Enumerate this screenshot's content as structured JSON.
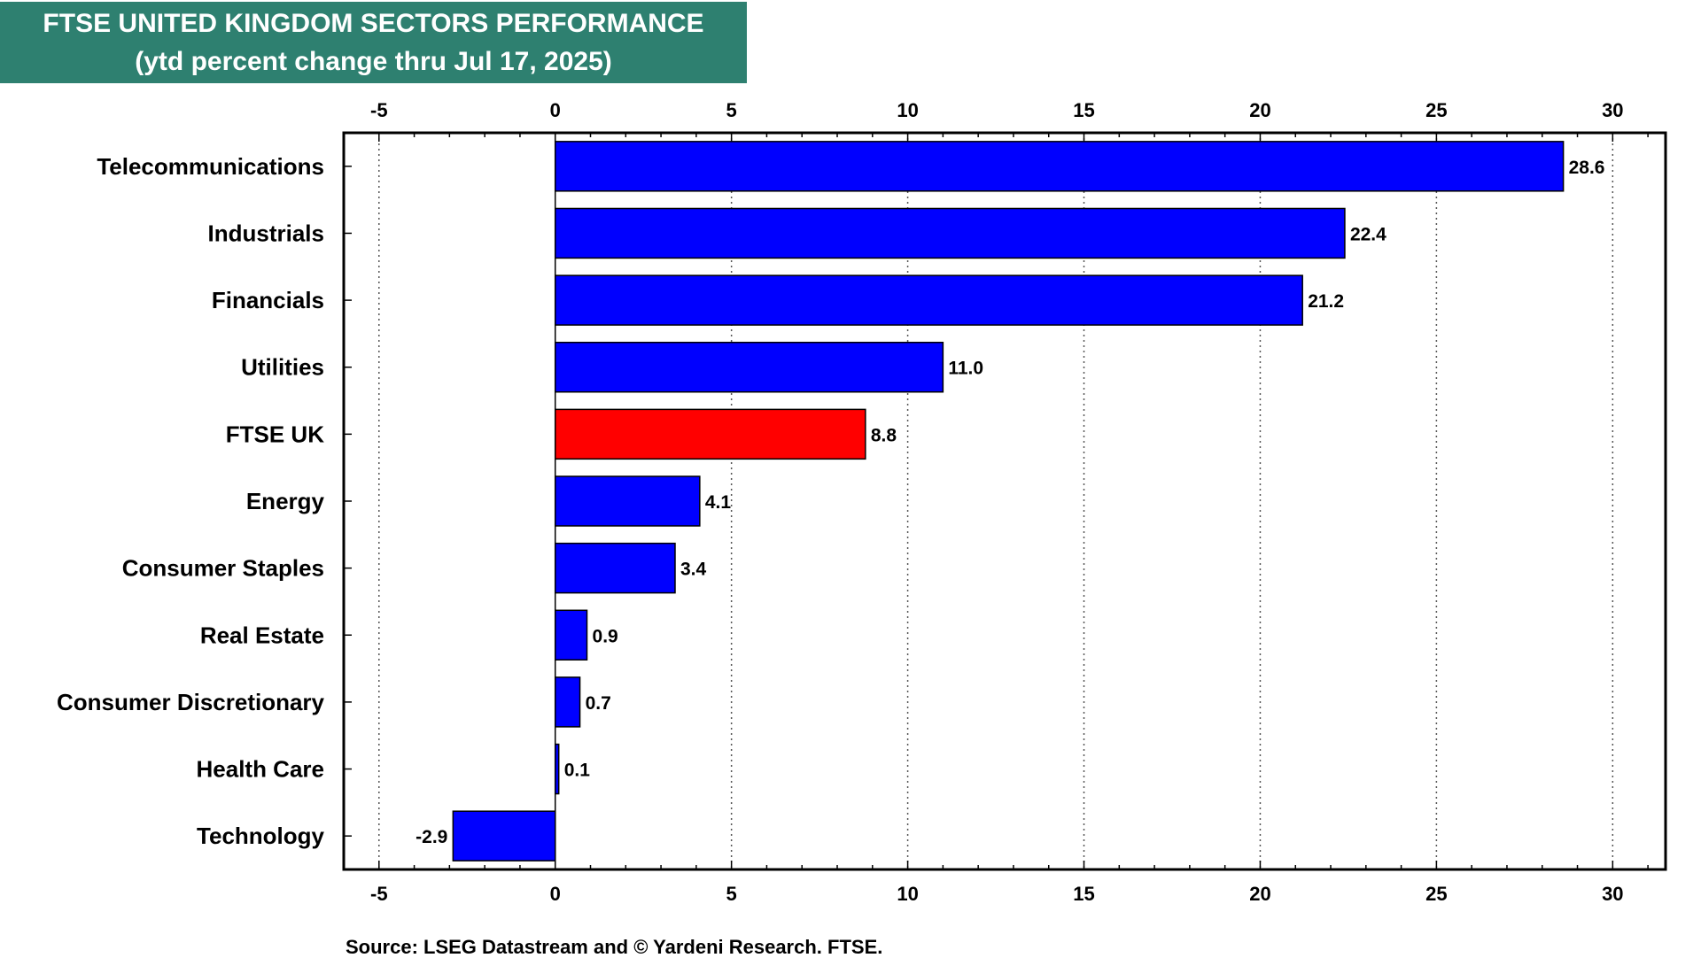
{
  "chart_data": {
    "type": "bar",
    "orientation": "horizontal",
    "title": "FTSE UNITED KINGDOM SECTORS PERFORMANCE",
    "subtitle": "(ytd percent change thru Jul 17, 2025)",
    "categories": [
      "Telecommunications",
      "Industrials",
      "Financials",
      "Utilities",
      "FTSE UK",
      "Energy",
      "Consumer Staples",
      "Real Estate",
      "Consumer Discretionary",
      "Health Care",
      "Technology"
    ],
    "values": [
      28.6,
      22.4,
      21.2,
      11.0,
      8.8,
      4.1,
      3.4,
      0.9,
      0.7,
      0.1,
      -2.9
    ],
    "value_labels": [
      "28.6",
      "22.4",
      "21.2",
      "11.0",
      "8.8",
      "4.1",
      "3.4",
      "0.9",
      "0.7",
      "0.1",
      "-2.9"
    ],
    "highlight_category": "FTSE UK",
    "xlim": [
      -6,
      31.5
    ],
    "xticks": [
      -5,
      0,
      5,
      10,
      15,
      20,
      25,
      30
    ],
    "xtick_labels": [
      "-5",
      "0",
      "5",
      "10",
      "15",
      "20",
      "25",
      "30"
    ],
    "xlabel": "",
    "ylabel": "",
    "grid": "vertical dotted",
    "legend": "none",
    "colors": {
      "bar": "#0000ff",
      "highlight": "#ff0000",
      "title_background": "#2e8070",
      "title_text": "#ffffff"
    }
  },
  "source": "Source: LSEG Datastream and © Yardeni Research. FTSE."
}
